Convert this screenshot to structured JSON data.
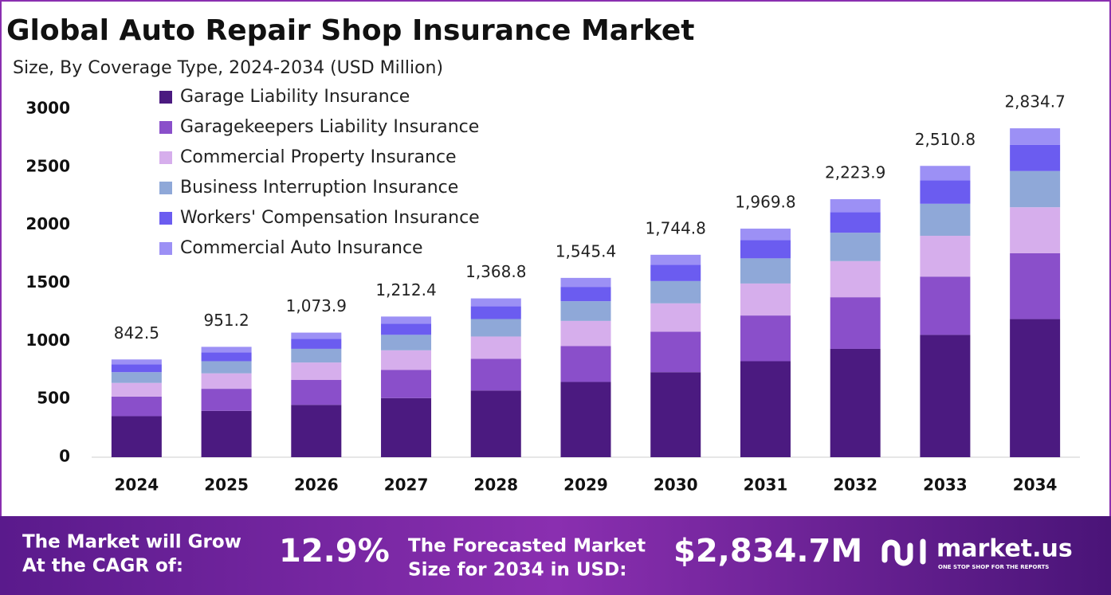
{
  "chart_data": {
    "type": "stacked_bar",
    "title": "Global Auto Repair Shop Insurance Market",
    "subtitle": "Size, By Coverage Type, 2024-2034 (USD Million)",
    "categories": [
      "2024",
      "2025",
      "2026",
      "2027",
      "2028",
      "2029",
      "2030",
      "2031",
      "2032",
      "2033",
      "2034"
    ],
    "series": [
      {
        "name": "Garage Liability Insurance",
        "color": "#4b1a80",
        "values": [
          353.9,
          399.5,
          451.0,
          509.2,
          574.9,
          649.1,
          732.8,
          827.3,
          934.0,
          1054.5,
          1190.6
        ]
      },
      {
        "name": "Garagekeepers Liability Insurance",
        "color": "#8a4fca",
        "values": [
          168.5,
          190.2,
          214.8,
          242.5,
          273.8,
          309.1,
          349.0,
          394.0,
          444.8,
          502.2,
          566.9
        ]
      },
      {
        "name": "Commercial Property Insurance",
        "color": "#d6aeec",
        "values": [
          118.0,
          133.2,
          150.3,
          169.7,
          191.6,
          216.4,
          244.3,
          275.8,
          311.3,
          351.5,
          396.9
        ]
      },
      {
        "name": "Business Interruption Insurance",
        "color": "#8fa8d8",
        "values": [
          92.7,
          104.6,
          118.1,
          133.4,
          150.6,
          170.0,
          191.9,
          216.7,
          244.6,
          276.2,
          311.8
        ]
      },
      {
        "name": "Workers' Compensation Insurance",
        "color": "#6b5cf0",
        "values": [
          67.4,
          76.1,
          85.9,
          97.0,
          109.5,
          123.6,
          139.6,
          157.6,
          177.9,
          200.9,
          226.8
        ]
      },
      {
        "name": "Commercial Auto Insurance",
        "color": "#9c90f5",
        "values": [
          42.1,
          47.6,
          53.7,
          60.6,
          68.4,
          77.3,
          87.2,
          98.5,
          111.2,
          125.5,
          141.7
        ]
      }
    ],
    "totals": [
      842.5,
      951.2,
      1073.9,
      1212.4,
      1368.8,
      1545.4,
      1744.8,
      1969.8,
      2223.9,
      2510.8,
      2834.7
    ],
    "totals_labels": [
      "842.5",
      "951.2",
      "1,073.9",
      "1,212.4",
      "1,368.8",
      "1,545.4",
      "1,744.8",
      "1,969.8",
      "2,223.9",
      "2,510.8",
      "2,834.7"
    ],
    "ylim": [
      0,
      3000
    ],
    "yticks": [
      0,
      500,
      1000,
      1500,
      2000,
      2500,
      3000
    ],
    "grid": false,
    "legend": "top-left"
  },
  "footer": {
    "cagr_text": [
      "The Market will Grow",
      "At the CAGR of:"
    ],
    "cagr": "12.9%",
    "forecast_text": [
      "The Forecasted Market",
      "Size for 2034 in USD:"
    ],
    "forecast": "$2,834.7M",
    "brand": "market.us",
    "tagline": "ONE STOP SHOP FOR THE REPORTS"
  }
}
